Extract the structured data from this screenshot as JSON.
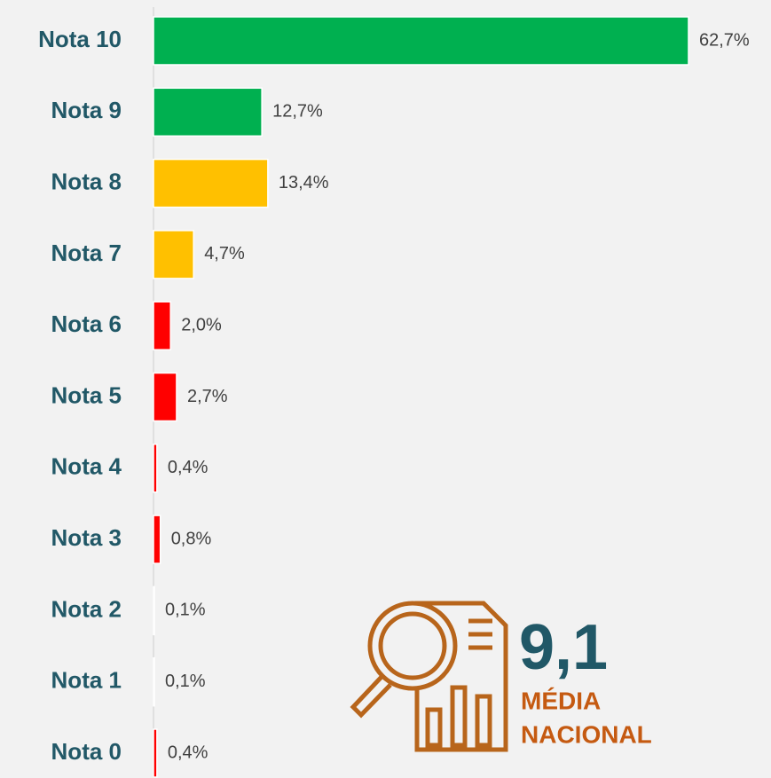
{
  "chart_data": {
    "type": "barh",
    "categories": [
      "Nota 10",
      "Nota 9",
      "Nota 8",
      "Nota 7",
      "Nota 6",
      "Nota 5",
      "Nota 4",
      "Nota 3",
      "Nota 2",
      "Nota 1",
      "Nota 0"
    ],
    "values": [
      62.7,
      12.7,
      13.4,
      4.7,
      2.0,
      2.7,
      0.4,
      0.8,
      0.1,
      0.1,
      0.4
    ],
    "value_labels": [
      "62,7%",
      "12,7%",
      "13,4%",
      "4,7%",
      "2,0%",
      "2,7%",
      "0,4%",
      "0,8%",
      "0,1%",
      "0,1%",
      "0,4%"
    ],
    "colors": [
      "#00b050",
      "#00b050",
      "#ffc000",
      "#ffc000",
      "#ff0000",
      "#ff0000",
      "#ff0000",
      "#ff0000",
      "#ff0000",
      "#ff0000",
      "#ff0000"
    ],
    "annotations": {
      "average": "9,1",
      "caption_line1": "MÉDIA",
      "caption_line2": "NACIONAL"
    }
  }
}
